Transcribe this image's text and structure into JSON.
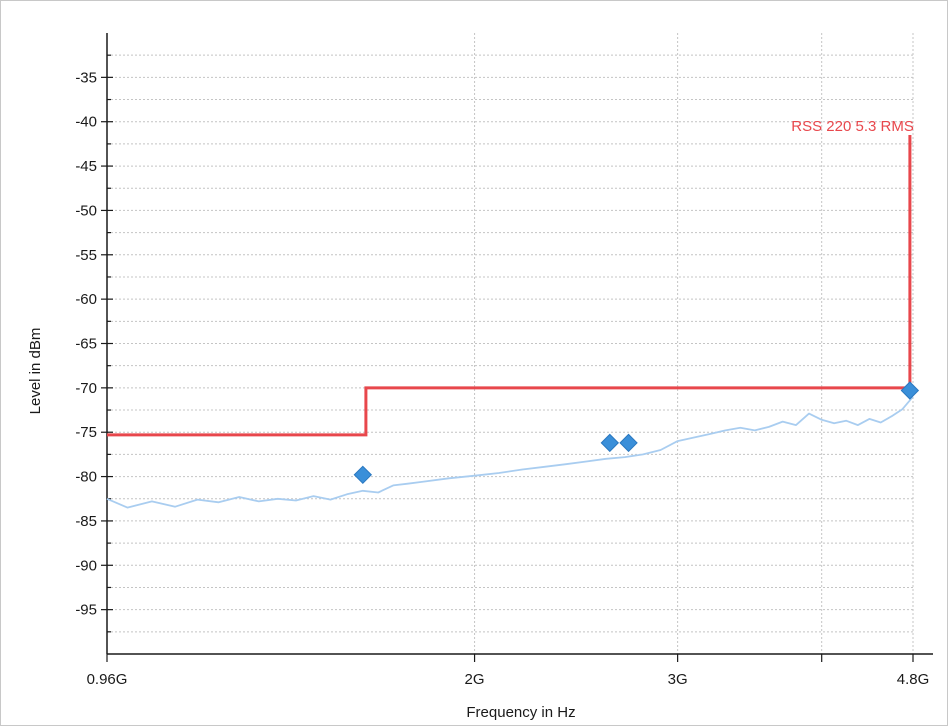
{
  "chart_data": {
    "type": "line",
    "title": "",
    "xlabel": "Frequency in Hz",
    "ylabel": "Level in dBm",
    "xscale": "log",
    "xlim": [
      960000000.0,
      4800000000.0
    ],
    "ylim": [
      -100,
      -30
    ],
    "x_ticks": [
      {
        "value": 960000000.0,
        "label": "0.96G"
      },
      {
        "value": 2000000000.0,
        "label": "2G"
      },
      {
        "value": 3000000000.0,
        "label": "3G"
      },
      {
        "value": 4800000000.0,
        "label": "4.8G"
      }
    ],
    "x_minor_ticks": [
      4000000000.0
    ],
    "y_ticks": [
      -95,
      -90,
      -85,
      -80,
      -75,
      -70,
      -65,
      -60,
      -55,
      -50,
      -45,
      -40,
      -35
    ],
    "grid": true,
    "colors": {
      "limit": "#e8474c",
      "trace": "#a9cdf0",
      "marker": "#3a8fd9"
    },
    "limit_line": {
      "label": "RSS 220 5.3 RMS",
      "points": [
        [
          960000000.0,
          -75.3
        ],
        [
          1610000000.0,
          -75.3
        ],
        [
          1610000000.0,
          -70
        ],
        [
          4770000000.0,
          -70
        ],
        [
          4770000000.0,
          -41.5
        ]
      ]
    },
    "series": [
      {
        "x": [
          960000000.0,
          1000000000.0,
          1050000000.0,
          1100000000.0,
          1150000000.0,
          1200000000.0,
          1250000000.0,
          1300000000.0,
          1350000000.0,
          1400000000.0,
          1450000000.0,
          1500000000.0,
          1550000000.0,
          1600000000.0,
          1650000000.0,
          1700000000.0,
          1750000000.0,
          1800000000.0,
          1900000000.0,
          2000000000.0,
          2100000000.0,
          2200000000.0,
          2300000000.0,
          2400000000.0,
          2500000000.0,
          2600000000.0,
          2700000000.0,
          2800000000.0,
          2900000000.0,
          3000000000.0,
          3100000000.0,
          3200000000.0,
          3300000000.0,
          3400000000.0,
          3500000000.0,
          3600000000.0,
          3700000000.0,
          3800000000.0,
          3900000000.0,
          4000000000.0,
          4100000000.0,
          4200000000.0,
          4300000000.0,
          4400000000.0,
          4500000000.0,
          4600000000.0,
          4700000000.0,
          4800000000.0
        ],
        "values": [
          -82.5,
          -83.5,
          -82.8,
          -83.4,
          -82.6,
          -82.9,
          -82.3,
          -82.8,
          -82.5,
          -82.7,
          -82.2,
          -82.6,
          -82.0,
          -81.6,
          -81.8,
          -81.0,
          -80.8,
          -80.6,
          -80.2,
          -79.9,
          -79.6,
          -79.2,
          -78.9,
          -78.6,
          -78.3,
          -78.0,
          -77.8,
          -77.5,
          -77.0,
          -76.0,
          -75.6,
          -75.2,
          -74.8,
          -74.5,
          -74.8,
          -74.4,
          -73.8,
          -74.2,
          -72.9,
          -73.6,
          -74.0,
          -73.7,
          -74.2,
          -73.5,
          -73.9,
          -73.2,
          -72.4,
          -71.0
        ]
      }
    ],
    "markers": [
      {
        "x": 1600000000.0,
        "y": -79.8
      },
      {
        "x": 2620000000.0,
        "y": -76.2
      },
      {
        "x": 2720000000.0,
        "y": -76.2
      },
      {
        "x": 4770000000.0,
        "y": -70.3
      }
    ]
  }
}
